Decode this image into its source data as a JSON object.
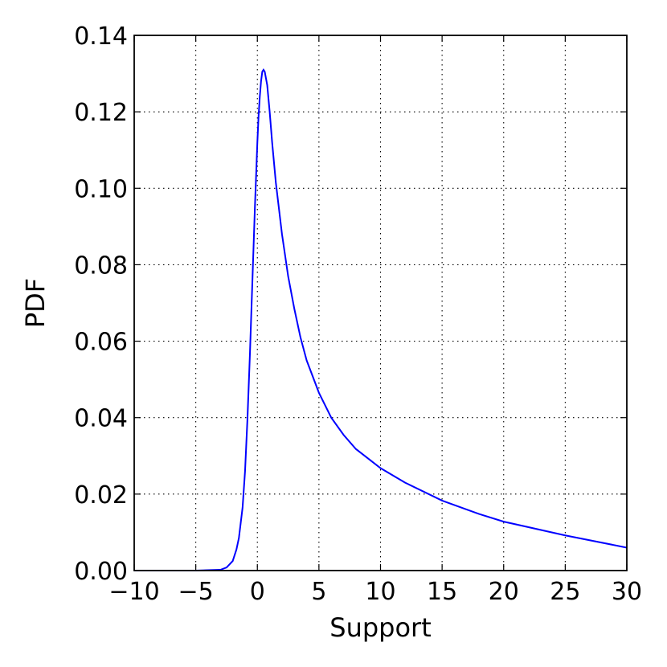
{
  "chart_data": {
    "type": "line",
    "title": "",
    "xlabel": "Support",
    "ylabel": "PDF",
    "xlim": [
      -10,
      30
    ],
    "ylim": [
      0.0,
      0.14
    ],
    "xticks": [
      -10,
      -5,
      0,
      5,
      10,
      15,
      20,
      25,
      30
    ],
    "xtick_labels": [
      "−10",
      "−5",
      "0",
      "5",
      "10",
      "15",
      "20",
      "25",
      "30"
    ],
    "yticks": [
      0.0,
      0.02,
      0.04,
      0.06,
      0.08,
      0.1,
      0.12,
      0.14
    ],
    "ytick_labels": [
      "0.00",
      "0.02",
      "0.04",
      "0.06",
      "0.08",
      "0.10",
      "0.12",
      "0.14"
    ],
    "grid": true,
    "legend": "none",
    "series": [
      {
        "color": "#0000ff",
        "x": [
          -10,
          -5,
          -3,
          -2.5,
          -2,
          -1.7,
          -1.5,
          -1.2,
          -1,
          -0.8,
          -0.6,
          -0.4,
          -0.2,
          0,
          0.1,
          0.2,
          0.3,
          0.4,
          0.5,
          0.6,
          0.8,
          1,
          1.2,
          1.5,
          2,
          2.5,
          3,
          3.5,
          4,
          5,
          6,
          7,
          8,
          10,
          12,
          15,
          18,
          20,
          25,
          30
        ],
        "y": [
          0.0,
          0.0,
          0.0002,
          0.0008,
          0.0025,
          0.0055,
          0.0085,
          0.0165,
          0.026,
          0.04,
          0.057,
          0.076,
          0.095,
          0.112,
          0.119,
          0.124,
          0.128,
          0.1305,
          0.131,
          0.1305,
          0.127,
          0.12,
          0.112,
          0.1015,
          0.088,
          0.077,
          0.0685,
          0.061,
          0.055,
          0.0465,
          0.04,
          0.0355,
          0.0318,
          0.0268,
          0.023,
          0.0183,
          0.0148,
          0.0128,
          0.0092,
          0.006
        ]
      }
    ]
  }
}
